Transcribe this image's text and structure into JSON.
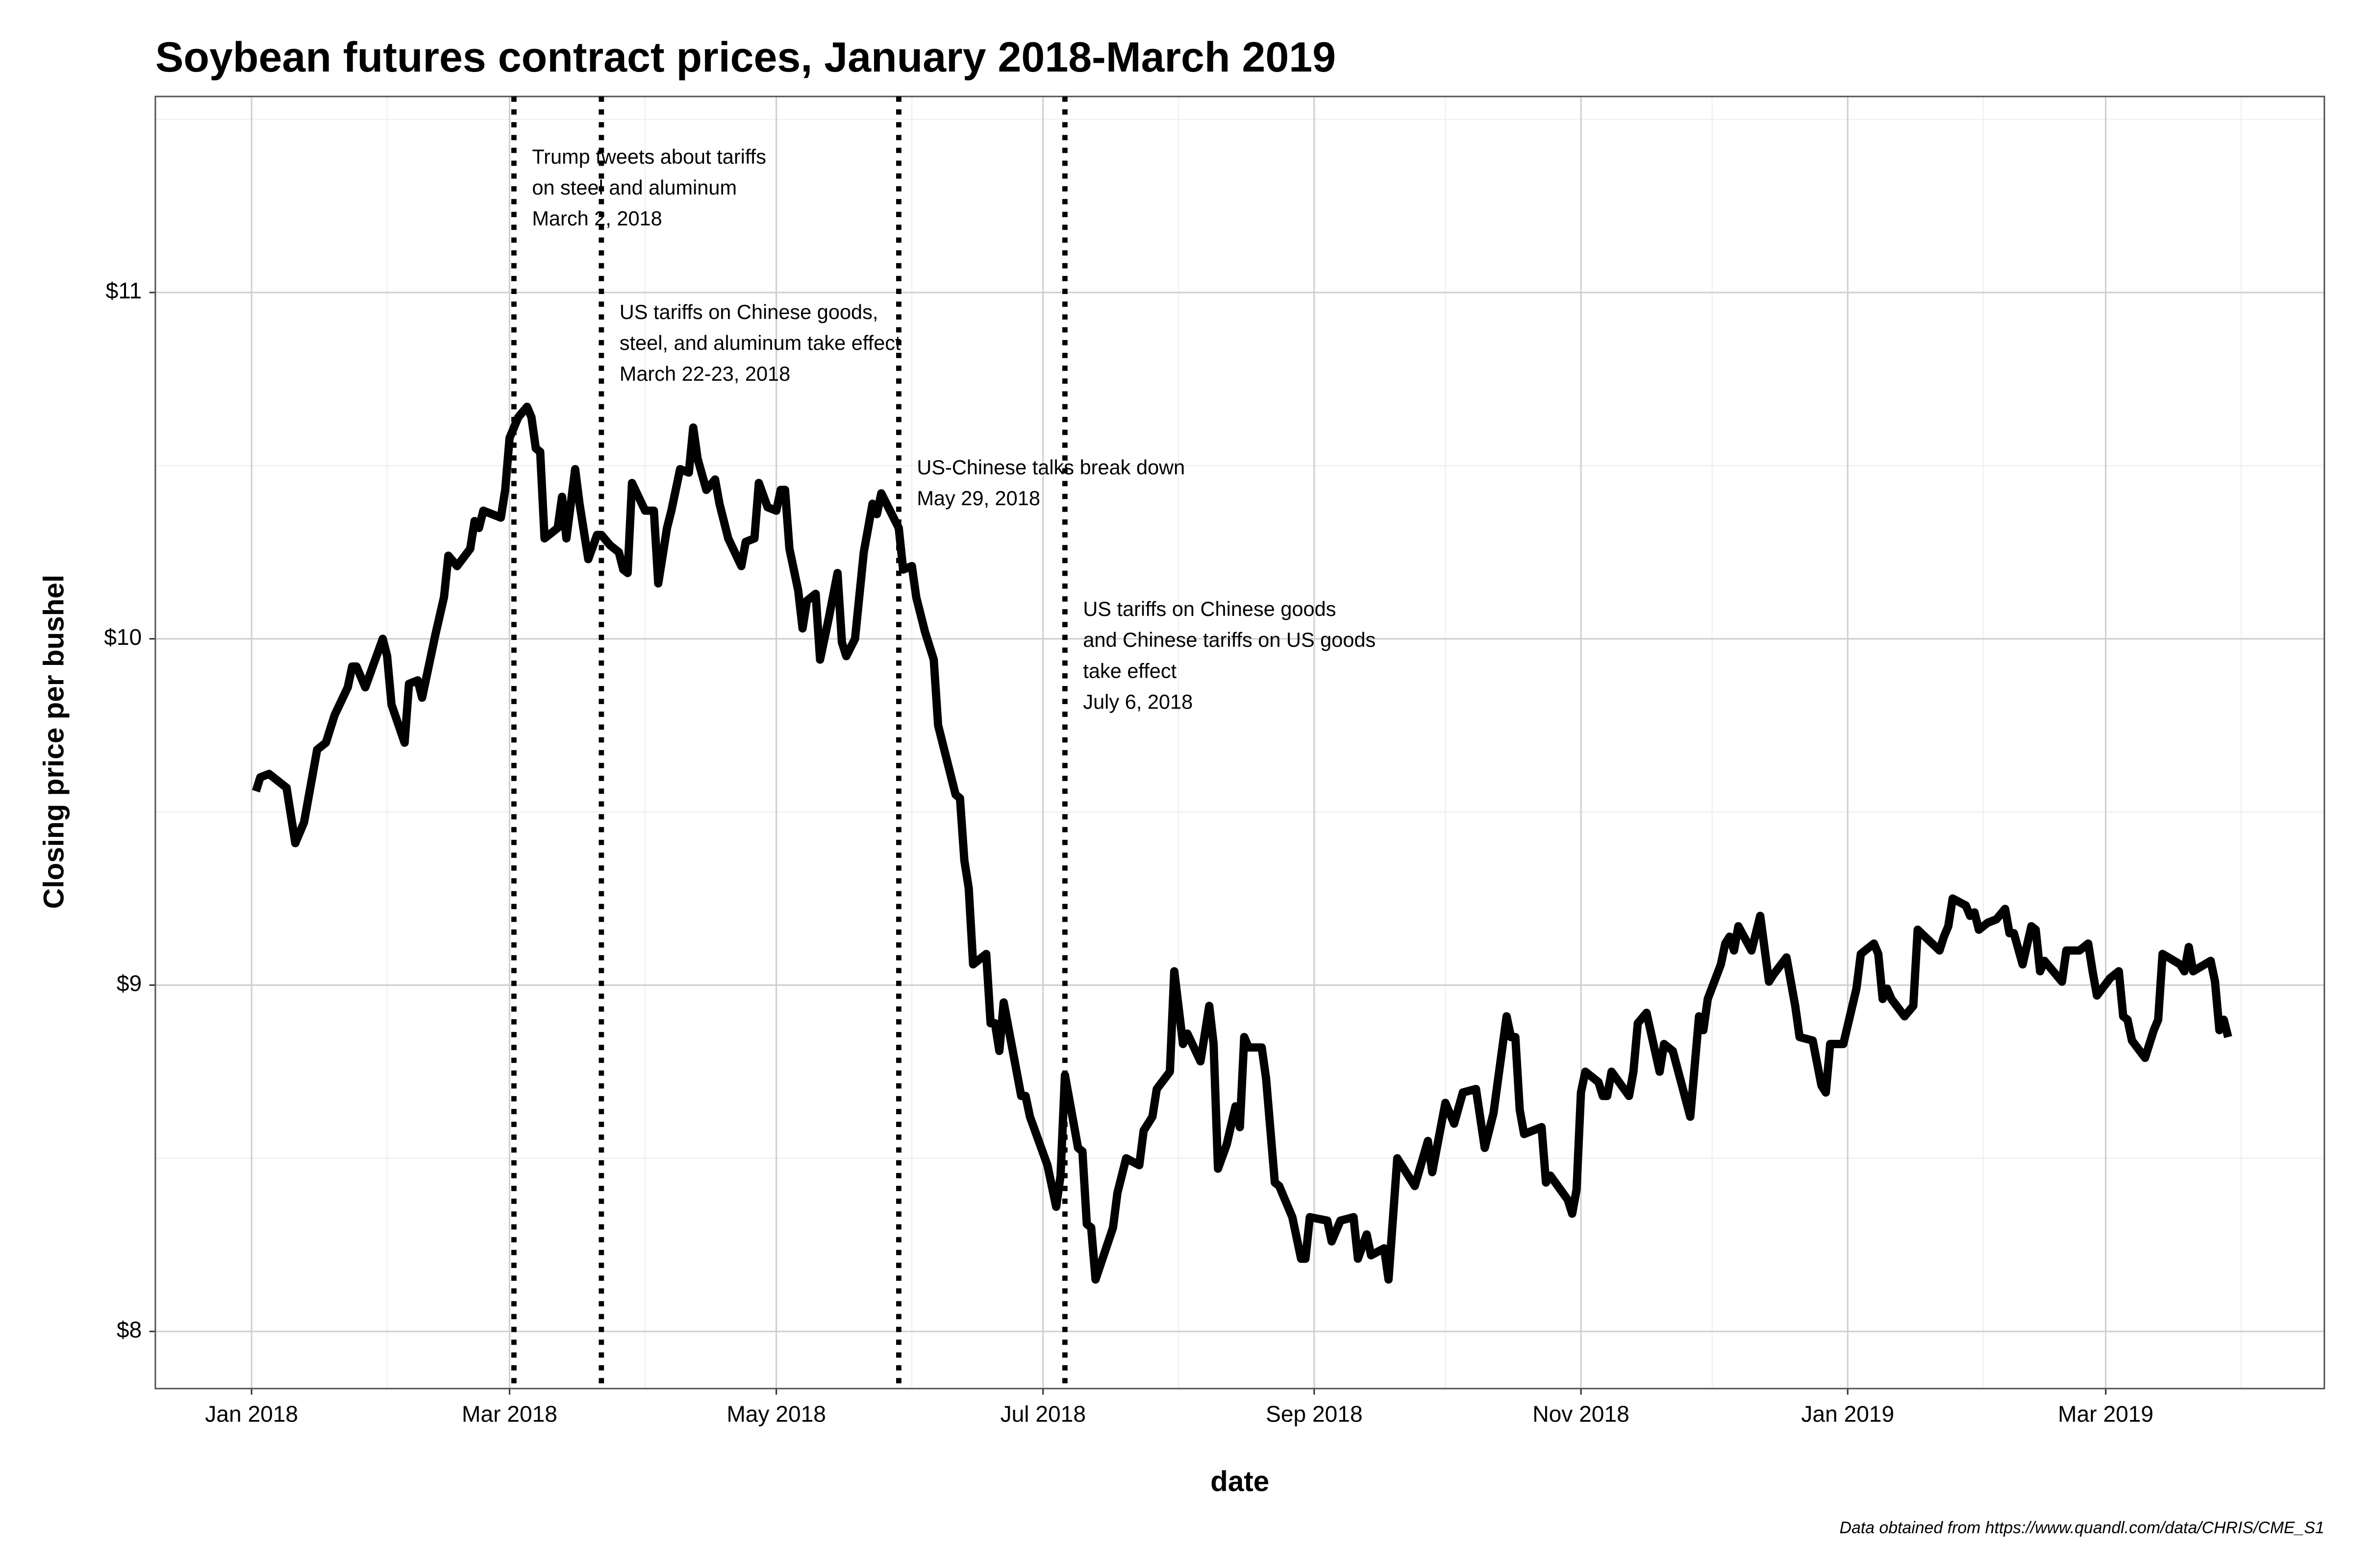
{
  "chart_data": {
    "type": "line",
    "title": "Soybean futures contract prices, January 2018-March 2019",
    "x_label": "date",
    "y_label": "Closing price per bushel",
    "caption": "Data obtained from https://www.quandl.com/data/CHRIS/CME_S1",
    "color": "#000000",
    "grid": true,
    "xlim": [
      "2017-12-10",
      "2019-04-20"
    ],
    "ylim": [
      7.835,
      11.566
    ],
    "xticks": [
      {
        "value": "2018-01-01",
        "label": "Jan 2018"
      },
      {
        "value": "2018-03-01",
        "label": "Mar 2018"
      },
      {
        "value": "2018-05-01",
        "label": "May 2018"
      },
      {
        "value": "2018-07-01",
        "label": "Jul 2018"
      },
      {
        "value": "2018-09-01",
        "label": "Sep 2018"
      },
      {
        "value": "2018-11-01",
        "label": "Nov 2018"
      },
      {
        "value": "2019-01-01",
        "label": "Jan 2019"
      },
      {
        "value": "2019-03-01",
        "label": "Mar 2019"
      }
    ],
    "minor_xticks": [
      "2018-02-01",
      "2018-04-01",
      "2018-06-01",
      "2018-08-01",
      "2018-10-01",
      "2018-12-01",
      "2019-02-01",
      "2019-04-01"
    ],
    "yticks": [
      {
        "value": 8,
        "label": "$8"
      },
      {
        "value": 9,
        "label": "$9"
      },
      {
        "value": 10,
        "label": "$10"
      },
      {
        "value": 11,
        "label": "$11"
      }
    ],
    "minor_yticks": [
      8.5,
      9.5,
      10.5,
      11.5
    ],
    "events": [
      {
        "x": "2018-03-02",
        "label": [
          "Trump tweets about tariffs",
          "on steel and aluminum",
          "March 2, 2018"
        ]
      },
      {
        "x": "2018-03-22",
        "label": [
          "US tariffs on Chinese goods,",
          "steel, and aluminum take effect",
          "March 22-23, 2018"
        ]
      },
      {
        "x": "2018-05-29",
        "label": [
          "US-Chinese talks break down",
          "May 29, 2018"
        ]
      },
      {
        "x": "2018-07-06",
        "label": [
          "US tariffs on Chinese goods",
          "and Chinese tariffs on US goods",
          "take effect",
          "July 6, 2018"
        ]
      }
    ],
    "x": [
      "2018-01-02",
      "2018-01-03",
      "2018-01-05",
      "2018-01-09",
      "2018-01-11",
      "2018-01-13",
      "2018-01-16",
      "2018-01-18",
      "2018-01-20",
      "2018-01-23",
      "2018-01-24",
      "2018-01-25",
      "2018-01-27",
      "2018-01-29",
      "2018-01-31",
      "2018-02-01",
      "2018-02-02",
      "2018-02-05",
      "2018-02-06",
      "2018-02-08",
      "2018-02-09",
      "2018-02-12",
      "2018-02-14",
      "2018-02-15",
      "2018-02-17",
      "2018-02-20",
      "2018-02-21",
      "2018-02-22",
      "2018-02-23",
      "2018-02-27",
      "2018-02-28",
      "2018-03-01",
      "2018-03-03",
      "2018-03-05",
      "2018-03-06",
      "2018-03-07",
      "2018-03-08",
      "2018-03-09",
      "2018-03-12",
      "2018-03-13",
      "2018-03-14",
      "2018-03-16",
      "2018-03-17",
      "2018-03-19",
      "2018-03-21",
      "2018-03-22",
      "2018-03-24",
      "2018-03-26",
      "2018-03-27",
      "2018-03-28",
      "2018-03-29",
      "2018-04-01",
      "2018-04-03",
      "2018-04-04",
      "2018-04-06",
      "2018-04-07",
      "2018-04-09",
      "2018-04-11",
      "2018-04-12",
      "2018-04-13",
      "2018-04-15",
      "2018-04-17",
      "2018-04-18",
      "2018-04-20",
      "2018-04-23",
      "2018-04-24",
      "2018-04-26",
      "2018-04-27",
      "2018-04-29",
      "2018-05-01",
      "2018-05-02",
      "2018-05-03",
      "2018-05-04",
      "2018-05-06",
      "2018-05-07",
      "2018-05-08",
      "2018-05-10",
      "2018-05-11",
      "2018-05-13",
      "2018-05-15",
      "2018-05-16",
      "2018-05-17",
      "2018-05-19",
      "2018-05-21",
      "2018-05-23",
      "2018-05-24",
      "2018-05-25",
      "2018-05-27",
      "2018-05-29",
      "2018-05-30",
      "2018-06-01",
      "2018-06-02",
      "2018-06-04",
      "2018-06-06",
      "2018-06-07",
      "2018-06-11",
      "2018-06-12",
      "2018-06-13",
      "2018-06-14",
      "2018-06-15",
      "2018-06-17",
      "2018-06-18",
      "2018-06-19",
      "2018-06-20",
      "2018-06-21",
      "2018-06-22",
      "2018-06-26",
      "2018-06-27",
      "2018-06-28",
      "2018-07-02",
      "2018-07-04",
      "2018-07-05",
      "2018-07-06",
      "2018-07-09",
      "2018-07-10",
      "2018-07-11",
      "2018-07-12",
      "2018-07-13",
      "2018-07-17",
      "2018-07-18",
      "2018-07-20",
      "2018-07-23",
      "2018-07-24",
      "2018-07-26",
      "2018-07-27",
      "2018-07-30",
      "2018-07-31",
      "2018-08-02",
      "2018-08-03",
      "2018-08-06",
      "2018-08-08",
      "2018-08-09",
      "2018-08-10",
      "2018-08-12",
      "2018-08-14",
      "2018-08-15",
      "2018-08-16",
      "2018-08-17",
      "2018-08-20",
      "2018-08-21",
      "2018-08-23",
      "2018-08-24",
      "2018-08-27",
      "2018-08-29",
      "2018-08-30",
      "2018-08-31",
      "2018-09-04",
      "2018-09-05",
      "2018-09-07",
      "2018-09-10",
      "2018-09-11",
      "2018-09-13",
      "2018-09-14",
      "2018-09-17",
      "2018-09-18",
      "2018-09-20",
      "2018-09-24",
      "2018-09-27",
      "2018-09-28",
      "2018-10-01",
      "2018-10-03",
      "2018-10-05",
      "2018-10-08",
      "2018-10-10",
      "2018-10-12",
      "2018-10-15",
      "2018-10-16",
      "2018-10-17",
      "2018-10-18",
      "2018-10-19",
      "2018-10-23",
      "2018-10-24",
      "2018-10-25",
      "2018-10-29",
      "2018-10-30",
      "2018-10-31",
      "2018-11-01",
      "2018-11-02",
      "2018-11-05",
      "2018-11-06",
      "2018-11-07",
      "2018-11-08",
      "2018-11-12",
      "2018-11-13",
      "2018-11-14",
      "2018-11-16",
      "2018-11-19",
      "2018-11-20",
      "2018-11-22",
      "2018-11-26",
      "2018-11-28",
      "2018-11-29",
      "2018-11-30",
      "2018-12-03",
      "2018-12-04",
      "2018-12-05",
      "2018-12-06",
      "2018-12-07",
      "2018-12-10",
      "2018-12-12",
      "2018-12-14",
      "2018-12-15",
      "2018-12-18",
      "2018-12-20",
      "2018-12-21",
      "2018-12-24",
      "2018-12-26",
      "2018-12-27",
      "2018-12-28",
      "2018-12-31",
      "2019-01-03",
      "2019-01-04",
      "2019-01-05",
      "2019-01-07",
      "2019-01-08",
      "2019-01-09",
      "2019-01-10",
      "2019-01-11",
      "2019-01-14",
      "2019-01-16",
      "2019-01-17",
      "2019-01-22",
      "2019-01-23",
      "2019-01-24",
      "2019-01-25",
      "2019-01-28",
      "2019-01-29",
      "2019-01-30",
      "2019-01-31",
      "2019-02-02",
      "2019-02-04",
      "2019-02-06",
      "2019-02-07",
      "2019-02-08",
      "2019-02-10",
      "2019-02-12",
      "2019-02-13",
      "2019-02-14",
      "2019-02-15",
      "2019-02-19",
      "2019-02-20",
      "2019-02-23",
      "2019-02-25",
      "2019-02-26",
      "2019-02-27",
      "2019-03-02",
      "2019-03-04",
      "2019-03-05",
      "2019-03-06",
      "2019-03-07",
      "2019-03-10",
      "2019-03-12",
      "2019-03-13",
      "2019-03-14",
      "2019-03-18",
      "2019-03-19",
      "2019-03-20",
      "2019-03-21",
      "2019-03-25",
      "2019-03-26",
      "2019-03-27",
      "2019-03-28",
      "2019-03-29"
    ],
    "values": [
      9.56,
      9.6,
      9.61,
      9.57,
      9.41,
      9.47,
      9.68,
      9.7,
      9.78,
      9.86,
      9.92,
      9.92,
      9.86,
      9.93,
      10.0,
      9.95,
      9.81,
      9.7,
      9.87,
      9.88,
      9.83,
      10.01,
      10.12,
      10.24,
      10.21,
      10.26,
      10.34,
      10.32,
      10.37,
      10.35,
      10.43,
      10.58,
      10.64,
      10.67,
      10.64,
      10.55,
      10.54,
      10.29,
      10.32,
      10.41,
      10.29,
      10.49,
      10.39,
      10.23,
      10.3,
      10.3,
      10.27,
      10.25,
      10.2,
      10.19,
      10.45,
      10.37,
      10.37,
      10.16,
      10.32,
      10.37,
      10.49,
      10.48,
      10.61,
      10.52,
      10.43,
      10.46,
      10.39,
      10.29,
      10.21,
      10.28,
      10.29,
      10.45,
      10.38,
      10.37,
      10.43,
      10.43,
      10.26,
      10.14,
      10.03,
      10.11,
      10.13,
      9.94,
      10.06,
      10.19,
      9.99,
      9.95,
      10.0,
      10.25,
      10.39,
      10.36,
      10.42,
      10.37,
      10.32,
      10.2,
      10.21,
      10.12,
      10.02,
      9.94,
      9.75,
      9.55,
      9.54,
      9.36,
      9.28,
      9.06,
      9.08,
      9.09,
      8.89,
      8.89,
      8.81,
      8.95,
      8.68,
      8.68,
      8.62,
      8.48,
      8.36,
      8.45,
      8.74,
      8.53,
      8.52,
      8.31,
      8.3,
      8.15,
      8.3,
      8.4,
      8.5,
      8.48,
      8.58,
      8.62,
      8.7,
      8.75,
      9.04,
      8.83,
      8.86,
      8.78,
      8.94,
      8.83,
      8.47,
      8.54,
      8.65,
      8.59,
      8.85,
      8.82,
      8.82,
      8.73,
      8.43,
      8.42,
      8.33,
      8.21,
      8.21,
      8.33,
      8.32,
      8.26,
      8.32,
      8.33,
      8.21,
      8.28,
      8.22,
      8.24,
      8.15,
      8.5,
      8.42,
      8.55,
      8.46,
      8.66,
      8.6,
      8.69,
      8.7,
      8.53,
      8.63,
      8.91,
      8.85,
      8.85,
      8.64,
      8.57,
      8.59,
      8.43,
      8.45,
      8.38,
      8.34,
      8.41,
      8.69,
      8.75,
      8.72,
      8.68,
      8.68,
      8.75,
      8.68,
      8.75,
      8.89,
      8.92,
      8.75,
      8.83,
      8.81,
      8.62,
      8.91,
      8.87,
      8.96,
      9.06,
      9.12,
      9.14,
      9.1,
      9.17,
      9.1,
      9.2,
      9.01,
      9.03,
      9.08,
      8.94,
      8.85,
      8.84,
      8.71,
      8.69,
      8.83,
      8.83,
      8.99,
      9.09,
      9.1,
      9.12,
      9.09,
      8.96,
      8.99,
      8.96,
      8.91,
      8.94,
      9.16,
      9.1,
      9.14,
      9.17,
      9.25,
      9.23,
      9.2,
      9.21,
      9.16,
      9.18,
      9.19,
      9.22,
      9.15,
      9.15,
      9.06,
      9.17,
      9.16,
      9.04,
      9.07,
      9.01,
      9.1,
      9.1,
      9.12,
      9.04,
      8.97,
      9.02,
      9.04,
      8.91,
      8.9,
      8.84,
      8.79,
      8.87,
      8.9,
      9.09,
      9.06,
      9.04,
      9.11,
      9.04,
      9.07,
      9.01,
      8.87,
      8.9,
      8.85
    ]
  }
}
